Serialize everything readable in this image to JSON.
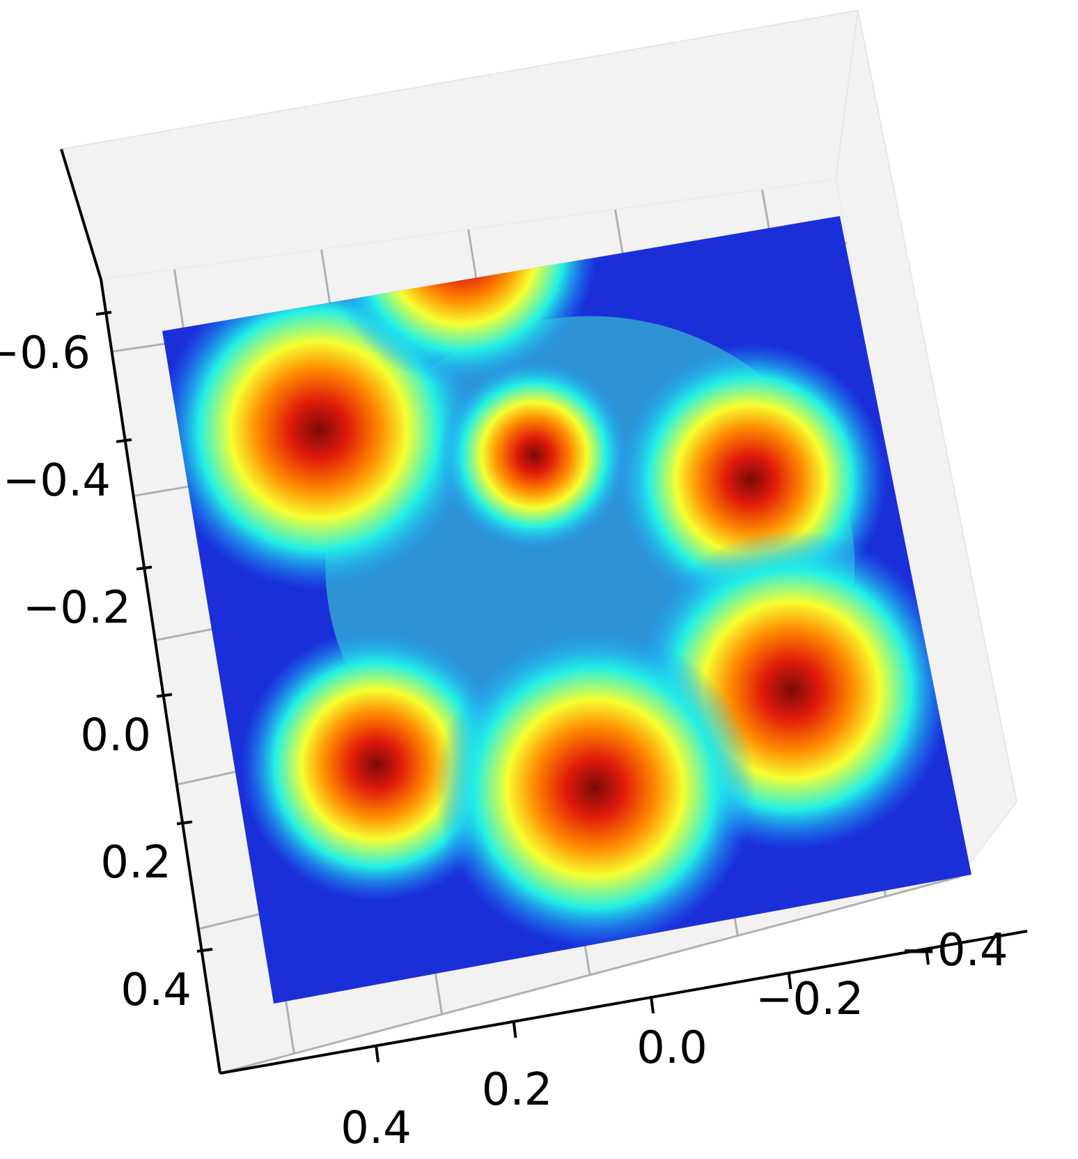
{
  "chart_data": {
    "type": "surface",
    "colormap": "jet",
    "view": "3d-oblique-from-above",
    "grid": true,
    "title": "",
    "xlabel": "",
    "ylabel": "",
    "zlabel": "",
    "x_axis": {
      "ticks": [
        0.4,
        0.2,
        0.0,
        -0.2,
        -0.4
      ],
      "tick_labels": [
        "0.4",
        "0.2",
        "0.0",
        "−0.2",
        "−0.4"
      ]
    },
    "y_axis": {
      "ticks": [
        -0.6,
        -0.4,
        -0.2,
        0.0,
        0.2,
        0.4
      ],
      "tick_labels": [
        "−0.6",
        "−0.4",
        "−0.2",
        "0.0",
        "0.2",
        "0.4"
      ]
    },
    "xlim": [
      -0.5,
      0.5
    ],
    "ylim": [
      -0.7,
      0.4
    ],
    "peaks": [
      {
        "x": 0.3,
        "y": -0.5,
        "height": 1.0
      },
      {
        "x": 0.05,
        "y": -0.75,
        "height": 0.85
      },
      {
        "x": 0.0,
        "y": -0.4,
        "height": 0.6
      },
      {
        "x": -0.3,
        "y": -0.3,
        "height": 0.85
      },
      {
        "x": -0.3,
        "y": 0.05,
        "height": 1.0
      },
      {
        "x": 0.3,
        "y": 0.05,
        "height": 0.85
      },
      {
        "x": 0.0,
        "y": 0.15,
        "height": 1.0
      }
    ]
  }
}
